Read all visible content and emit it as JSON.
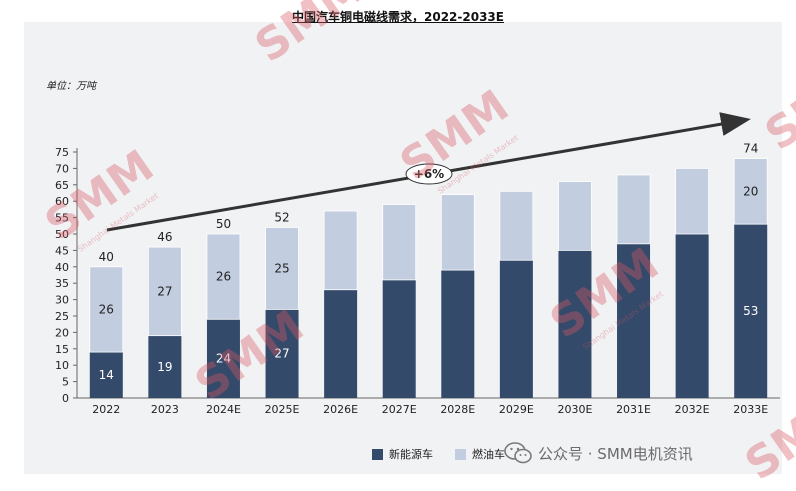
{
  "chart_data": {
    "type": "bar",
    "stacked": true,
    "title": "中国汽车铜电磁线需求，2022-2033E",
    "unit_label": "单位：万吨",
    "categories": [
      "2022",
      "2023",
      "2024E",
      "2025E",
      "2026E",
      "2027E",
      "2028E",
      "2029E",
      "2030E",
      "2031E",
      "2032E",
      "2033E"
    ],
    "series": [
      {
        "name": "新能源车",
        "color": "#344a6a",
        "values": [
          14,
          19,
          24,
          27,
          33,
          36,
          39,
          42,
          45,
          47,
          50,
          53
        ]
      },
      {
        "name": "燃油车",
        "color": "#c3cde0",
        "values": [
          26,
          27,
          26,
          25,
          24,
          23,
          23,
          21,
          21,
          21,
          20,
          20
        ]
      }
    ],
    "totals": [
      40,
      46,
      50,
      52,
      null,
      null,
      null,
      null,
      null,
      null,
      null,
      74
    ],
    "segment_labels": {
      "新能源车": [
        "14",
        "19",
        "24",
        "27",
        "",
        "",
        "",
        "",
        "",
        "",
        "",
        "53"
      ],
      "燃油车": [
        "26",
        "27",
        "26",
        "25",
        "",
        "",
        "",
        "",
        "",
        "",
        "",
        "20"
      ]
    },
    "y_ticks": [
      0,
      5,
      10,
      15,
      20,
      25,
      30,
      35,
      40,
      45,
      50,
      55,
      60,
      65,
      70,
      75
    ],
    "ylim": [
      0,
      75
    ],
    "trend_label": "+6%",
    "grid": false,
    "legend_position": "bottom-center"
  },
  "watermark": {
    "brand": "SMM",
    "sub": "Shanghai Metals Market"
  },
  "footer": {
    "wechat_text": "公众号 · SMM电机资讯"
  }
}
